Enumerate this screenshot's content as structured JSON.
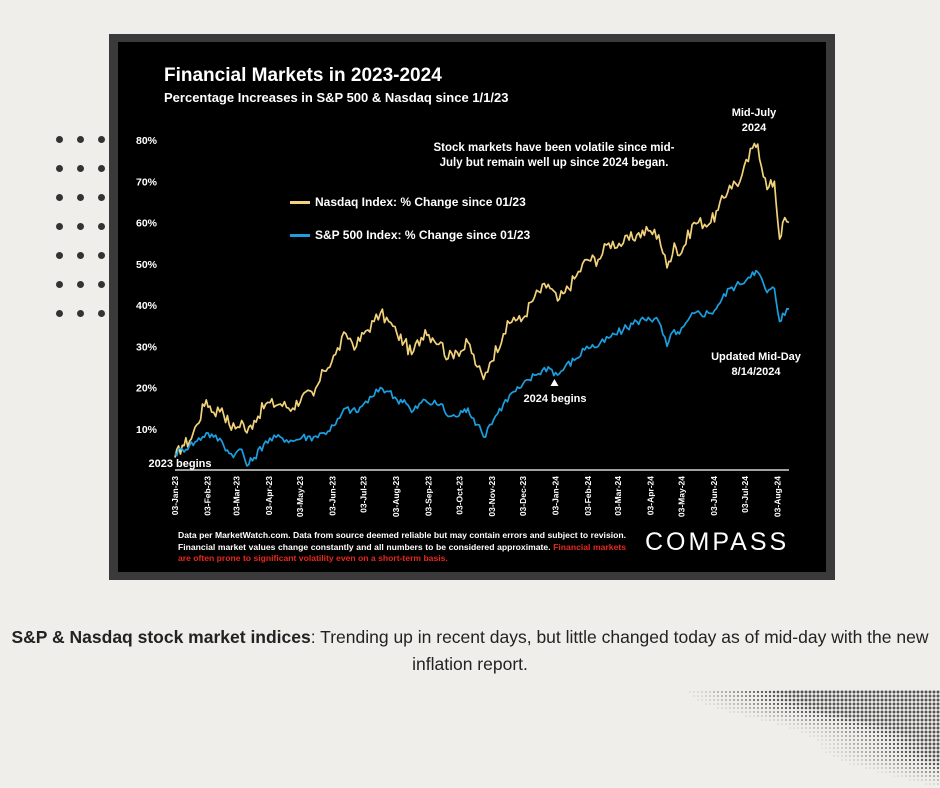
{
  "title": "Financial Markets in 2023-2024",
  "subtitle": "Percentage Increases in S&P 500 & Nasdaq since 1/1/23",
  "annotations": {
    "peak_label_line1": "Mid-July",
    "peak_label_line2": "2024",
    "volatility_line1": "Stock markets have been volatile since mid-",
    "volatility_line2": "July but remain well up since 2024 began.",
    "start_label": "2023 begins",
    "year_start_label": "2024 begins",
    "updated_line1": "Updated Mid-Day",
    "updated_line2": "8/14/2024"
  },
  "legend": {
    "nasdaq": "Nasdaq Index: % Change since 01/23",
    "sp500": "S&P 500 Index: % Change since 01/23"
  },
  "footnote": {
    "text": "Data per MarketWatch.com. Data from source deemed reliable but may contain errors and subject to revision. Financial market values change constantly and all numbers to be considered approximate.",
    "warning": "Financial markets are often prone to significant volatility even on a short-term basis."
  },
  "brand": "COMPASS",
  "caption": {
    "bold": "S&P & Nasdaq stock market indices",
    "text": ": Trending up in recent days, but little changed today as of mid-day with the new inflation report."
  },
  "colors": {
    "nasdaq": "#f2d27a",
    "sp500": "#1a9fe0",
    "background": "#efeeea",
    "panel": "#000000",
    "warning": "#e8281e"
  },
  "chart_data": {
    "type": "line",
    "title": "Financial Markets in 2023-2024",
    "xlabel": "",
    "ylabel": "",
    "ylim": [
      0,
      80
    ],
    "y_ticks": [
      "10%",
      "20%",
      "30%",
      "40%",
      "50%",
      "60%",
      "70%",
      "80%"
    ],
    "y_tick_values": [
      10,
      20,
      30,
      40,
      50,
      60,
      70,
      80
    ],
    "x_ticks": [
      "03-Jan-23",
      "03-Feb-23",
      "03-Mar-23",
      "03-Apr-23",
      "03-May-23",
      "03-Jun-23",
      "03-Jul-23",
      "03-Aug-23",
      "03-Sep-23",
      "03-Oct-23",
      "03-Nov-23",
      "03-Dec-23",
      "03-Jan-24",
      "03-Feb-24",
      "03-Mar-24",
      "03-Apr-24",
      "03-May-24",
      "03-Jun-24",
      "03-Jul-24",
      "03-Aug-24"
    ],
    "x_start": "2023-01-03",
    "x_end": "2024-08-14",
    "series": [
      {
        "name": "Nasdaq Index: % Change since 01/23",
        "points": [
          [
            "2023-01-03",
            3
          ],
          [
            "2023-01-10",
            6
          ],
          [
            "2023-01-17",
            7
          ],
          [
            "2023-01-24",
            11
          ],
          [
            "2023-02-02",
            17
          ],
          [
            "2023-02-09",
            14
          ],
          [
            "2023-02-17",
            15
          ],
          [
            "2023-02-24",
            11
          ],
          [
            "2023-03-02",
            10
          ],
          [
            "2023-03-08",
            12
          ],
          [
            "2023-03-13",
            9
          ],
          [
            "2023-03-20",
            12
          ],
          [
            "2023-03-31",
            16
          ],
          [
            "2023-04-14",
            16
          ],
          [
            "2023-04-26",
            15
          ],
          [
            "2023-05-05",
            18
          ],
          [
            "2023-05-16",
            18
          ],
          [
            "2023-05-26",
            24
          ],
          [
            "2023-06-06",
            28
          ],
          [
            "2023-06-16",
            33
          ],
          [
            "2023-06-26",
            30
          ],
          [
            "2023-07-03",
            33
          ],
          [
            "2023-07-13",
            36
          ],
          [
            "2023-07-19",
            38
          ],
          [
            "2023-07-27",
            36
          ],
          [
            "2023-08-04",
            33
          ],
          [
            "2023-08-11",
            31
          ],
          [
            "2023-08-18",
            28
          ],
          [
            "2023-08-31",
            34
          ],
          [
            "2023-09-07",
            32
          ],
          [
            "2023-09-15",
            31
          ],
          [
            "2023-09-22",
            27
          ],
          [
            "2023-09-29",
            29
          ],
          [
            "2023-10-06",
            29
          ],
          [
            "2023-10-11",
            31
          ],
          [
            "2023-10-20",
            25
          ],
          [
            "2023-10-26",
            22
          ],
          [
            "2023-11-01",
            26
          ],
          [
            "2023-11-14",
            33
          ],
          [
            "2023-11-24",
            37
          ],
          [
            "2023-12-01",
            36
          ],
          [
            "2023-12-14",
            42
          ],
          [
            "2023-12-27",
            45
          ],
          [
            "2024-01-05",
            41
          ],
          [
            "2024-01-12",
            43
          ],
          [
            "2024-01-23",
            47
          ],
          [
            "2024-02-02",
            51
          ],
          [
            "2024-02-13",
            51
          ],
          [
            "2024-02-23",
            55
          ],
          [
            "2024-03-08",
            55
          ],
          [
            "2024-03-21",
            57
          ],
          [
            "2024-04-01",
            58
          ],
          [
            "2024-04-11",
            57
          ],
          [
            "2024-04-19",
            49
          ],
          [
            "2024-04-26",
            55
          ],
          [
            "2024-05-01",
            52
          ],
          [
            "2024-05-15",
            60
          ],
          [
            "2024-05-31",
            60
          ],
          [
            "2024-06-07",
            63
          ],
          [
            "2024-06-18",
            69
          ],
          [
            "2024-06-28",
            70
          ],
          [
            "2024-07-10",
            78
          ],
          [
            "2024-07-15",
            79
          ],
          [
            "2024-07-24",
            68
          ],
          [
            "2024-07-31",
            70
          ],
          [
            "2024-08-05",
            56
          ],
          [
            "2024-08-08",
            60
          ],
          [
            "2024-08-14",
            60
          ]
        ]
      },
      {
        "name": "S&P 500 Index: % Change since 01/23",
        "points": [
          [
            "2023-01-03",
            4
          ],
          [
            "2023-01-10",
            5
          ],
          [
            "2023-01-17",
            6
          ],
          [
            "2023-01-24",
            7
          ],
          [
            "2023-02-02",
            9
          ],
          [
            "2023-02-09",
            8
          ],
          [
            "2023-02-17",
            7
          ],
          [
            "2023-02-24",
            4
          ],
          [
            "2023-03-02",
            4
          ],
          [
            "2023-03-08",
            5
          ],
          [
            "2023-03-13",
            1
          ],
          [
            "2023-03-20",
            3
          ],
          [
            "2023-03-31",
            7
          ],
          [
            "2023-04-14",
            8
          ],
          [
            "2023-04-26",
            7
          ],
          [
            "2023-05-05",
            8
          ],
          [
            "2023-05-16",
            8
          ],
          [
            "2023-05-26",
            9
          ],
          [
            "2023-06-06",
            11
          ],
          [
            "2023-06-16",
            15
          ],
          [
            "2023-06-26",
            14
          ],
          [
            "2023-07-03",
            16
          ],
          [
            "2023-07-13",
            18
          ],
          [
            "2023-07-19",
            20
          ],
          [
            "2023-07-27",
            19
          ],
          [
            "2023-08-04",
            17
          ],
          [
            "2023-08-11",
            17
          ],
          [
            "2023-08-18",
            14
          ],
          [
            "2023-08-31",
            17
          ],
          [
            "2023-09-07",
            16
          ],
          [
            "2023-09-15",
            16
          ],
          [
            "2023-09-22",
            13
          ],
          [
            "2023-09-29",
            13
          ],
          [
            "2023-10-06",
            14
          ],
          [
            "2023-10-11",
            15
          ],
          [
            "2023-10-20",
            11
          ],
          [
            "2023-10-26",
            8
          ],
          [
            "2023-11-01",
            11
          ],
          [
            "2023-11-14",
            16
          ],
          [
            "2023-11-24",
            19
          ],
          [
            "2023-12-01",
            20
          ],
          [
            "2023-12-14",
            23
          ],
          [
            "2023-12-27",
            25
          ],
          [
            "2024-01-05",
            23
          ],
          [
            "2024-01-12",
            25
          ],
          [
            "2024-01-23",
            27
          ],
          [
            "2024-02-02",
            30
          ],
          [
            "2024-02-13",
            30
          ],
          [
            "2024-02-23",
            32
          ],
          [
            "2024-03-08",
            34
          ],
          [
            "2024-03-21",
            36
          ],
          [
            "2024-04-01",
            37
          ],
          [
            "2024-04-11",
            36
          ],
          [
            "2024-04-19",
            30
          ],
          [
            "2024-04-26",
            34
          ],
          [
            "2024-05-01",
            33
          ],
          [
            "2024-05-15",
            38
          ],
          [
            "2024-05-31",
            38
          ],
          [
            "2024-06-07",
            40
          ],
          [
            "2024-06-18",
            44
          ],
          [
            "2024-06-28",
            45
          ],
          [
            "2024-07-10",
            48
          ],
          [
            "2024-07-15",
            48
          ],
          [
            "2024-07-24",
            43
          ],
          [
            "2024-07-31",
            44
          ],
          [
            "2024-08-05",
            36
          ],
          [
            "2024-08-08",
            38
          ],
          [
            "2024-08-14",
            39
          ]
        ]
      }
    ]
  }
}
